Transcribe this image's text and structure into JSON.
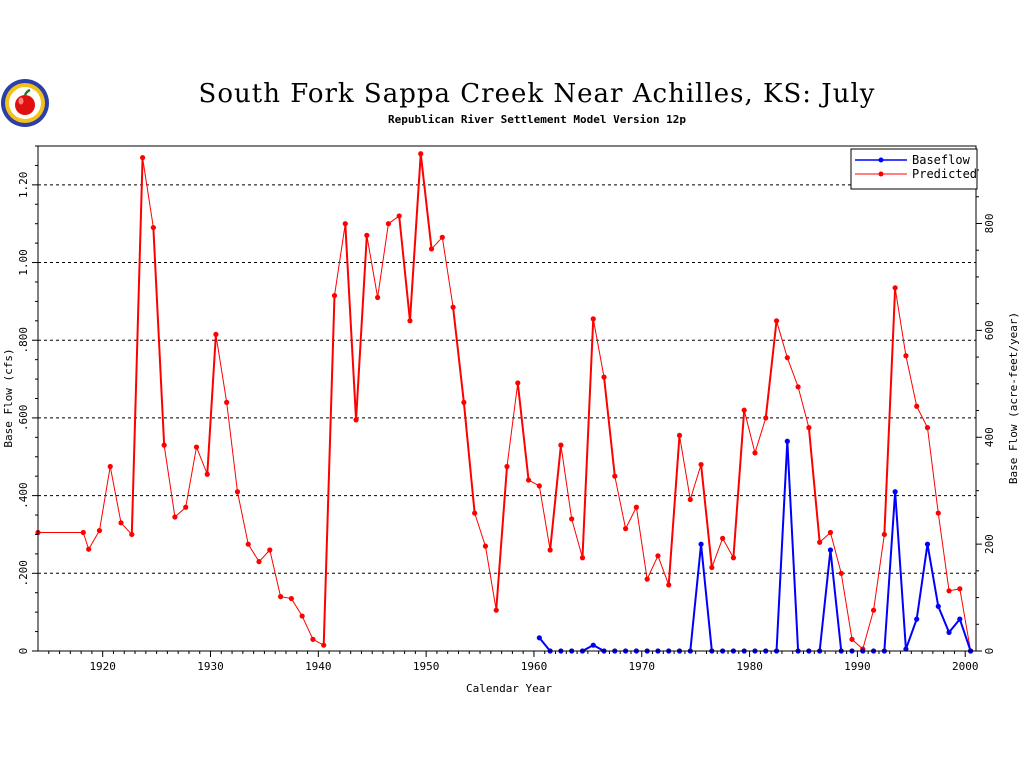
{
  "chart_data": {
    "type": "line",
    "title": "South Fork Sappa Creek Near Achilles, KS: July",
    "subtitle": "Republican River Settlement Model Version 12p",
    "xlabel": "Calendar Year",
    "ylabel_left": "Base Flow  (cfs)",
    "ylabel_right": "Base Flow  (acre-feet/year)",
    "xlim": [
      1914,
      2001
    ],
    "ylim_left": [
      0,
      1.3
    ],
    "ylim_right": [
      0,
      945
    ],
    "x_ticks": [
      1920,
      1930,
      1940,
      1950,
      1960,
      1970,
      1980,
      1990,
      2000
    ],
    "x_tick_labels": [
      "1920",
      "1930",
      "1940",
      "1950",
      "1960",
      "1970",
      "1980",
      "1990",
      "2000"
    ],
    "y_left_ticks": [
      0,
      0.2,
      0.4,
      0.6,
      0.8,
      1.0,
      1.2
    ],
    "y_left_tick_labels": [
      "0",
      ".200",
      ".400",
      ".600",
      ".800",
      "1.00",
      "1.20"
    ],
    "y_right_ticks": [
      0,
      200,
      400,
      600,
      800
    ],
    "y_right_tick_labels": [
      "0",
      "200",
      "400",
      "600",
      "800"
    ],
    "grid": "horizontal dashed at left-axis major ticks",
    "legend_position": "top-right",
    "series": [
      {
        "name": "Baseflow",
        "color": "#0000ff",
        "x": [
          1960.5,
          1961.5,
          1962.5,
          1963.5,
          1964.5,
          1965.5,
          1966.5,
          1967.5,
          1968.5,
          1969.5,
          1970.5,
          1971.5,
          1972.5,
          1973.5,
          1974.5,
          1975.5,
          1976.5,
          1977.5,
          1978.5,
          1979.5,
          1980.5,
          1981.5,
          1982.5,
          1983.5,
          1984.5,
          1985.5,
          1986.5,
          1987.5,
          1988.5,
          1989.5,
          1990.5,
          1991.5,
          1992.5,
          1993.5,
          1994.5,
          1995.5,
          1996.5,
          1997.5,
          1998.5,
          1999.5,
          2000.5
        ],
        "values": [
          0.034,
          0.0,
          0.0,
          0.0,
          0.0,
          0.015,
          0.0,
          0.0,
          0.0,
          0.0,
          0.0,
          0.0,
          0.0,
          0.0,
          0.0,
          0.275,
          0.0,
          0.0,
          0.0,
          0.0,
          0.0,
          0.0,
          0.0,
          0.54,
          0.0,
          0.0,
          0.0,
          0.26,
          0.0,
          0.0,
          0.0,
          0.0,
          0.0,
          0.41,
          0.005,
          0.082,
          0.275,
          0.115,
          0.048,
          0.082,
          0.0
        ]
      },
      {
        "name": "Predicted",
        "color": "#ff0000",
        "x": [
          1914,
          1918.2,
          1918.7,
          1919.7,
          1920.7,
          1921.7,
          1922.7,
          1923.7,
          1924.7,
          1925.7,
          1926.7,
          1927.7,
          1928.7,
          1929.7,
          1930.5,
          1931.5,
          1932.5,
          1933.5,
          1934.5,
          1935.5,
          1936.5,
          1937.5,
          1938.5,
          1939.5,
          1940.5,
          1941.5,
          1942.5,
          1943.5,
          1944.5,
          1945.5,
          1946.5,
          1947.5,
          1948.5,
          1949.5,
          1950.5,
          1951.5,
          1952.5,
          1953.5,
          1954.5,
          1955.5,
          1956.5,
          1957.5,
          1958.5,
          1959.5,
          1960.5,
          1961.5,
          1962.5,
          1963.5,
          1964.5,
          1965.5,
          1966.5,
          1967.5,
          1968.5,
          1969.5,
          1970.5,
          1971.5,
          1972.5,
          1973.5,
          1974.5,
          1975.5,
          1976.5,
          1977.5,
          1978.5,
          1979.5,
          1980.5,
          1981.5,
          1982.5,
          1983.5,
          1984.5,
          1985.5,
          1986.5,
          1987.5,
          1988.5,
          1989.5,
          1990.5,
          1991.5,
          1992.5,
          1993.5,
          1994.5,
          1995.5,
          1996.5,
          1997.5,
          1998.5,
          1999.5,
          2000.5
        ],
        "values": [
          0.305,
          0.305,
          0.262,
          0.31,
          0.475,
          0.33,
          0.3,
          1.27,
          1.09,
          0.53,
          0.345,
          0.37,
          0.525,
          0.455,
          0.815,
          0.64,
          0.41,
          0.275,
          0.23,
          0.26,
          0.14,
          0.135,
          0.09,
          0.03,
          0.015,
          0.915,
          1.1,
          0.595,
          1.07,
          0.91,
          1.1,
          1.12,
          0.85,
          1.28,
          1.035,
          1.065,
          0.885,
          0.64,
          0.355,
          0.27,
          0.105,
          0.475,
          0.69,
          0.44,
          0.425,
          0.26,
          0.53,
          0.34,
          0.24,
          0.855,
          0.705,
          0.45,
          0.315,
          0.37,
          0.185,
          0.245,
          0.17,
          0.555,
          0.39,
          0.48,
          0.215,
          0.29,
          0.24,
          0.62,
          0.51,
          0.6,
          0.85,
          0.755,
          0.68,
          0.575,
          0.28,
          0.305,
          0.2,
          0.03,
          0.005,
          0.105,
          0.3,
          0.935,
          0.76,
          0.63,
          0.575,
          0.355,
          0.155,
          0.16,
          0.0
        ]
      }
    ]
  }
}
